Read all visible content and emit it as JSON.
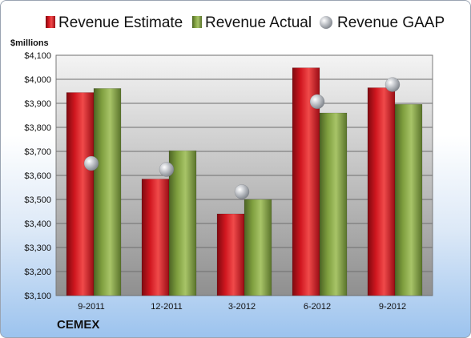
{
  "chart_data": {
    "type": "bar",
    "ylabel": "$millions",
    "ylim": [
      3100,
      4100
    ],
    "yticks": [
      3100,
      3200,
      3300,
      3400,
      3500,
      3600,
      3700,
      3800,
      3900,
      4000,
      4100
    ],
    "ytick_labels": [
      "$3,100",
      "$3,200",
      "$3,300",
      "$3,400",
      "$3,500",
      "$3,600",
      "$3,700",
      "$3,800",
      "$3,900",
      "$4,000",
      "$4,100"
    ],
    "categories": [
      "9-2011",
      "12-2011",
      "3-2012",
      "6-2012",
      "9-2012"
    ],
    "series": [
      {
        "name": "Revenue Estimate",
        "type": "bar",
        "color": "#c8131f",
        "values": [
          3945,
          3585,
          3440,
          4048,
          3965
        ]
      },
      {
        "name": "Revenue Actual",
        "type": "bar",
        "color": "#7a9a3b",
        "values": [
          3962,
          3703,
          3500,
          3860,
          3896
        ]
      },
      {
        "name": "Revenue GAAP",
        "type": "scatter",
        "color": "#a9adb3",
        "values": [
          3650,
          3625,
          3532,
          3907,
          3978
        ]
      }
    ],
    "grid": true,
    "legend": "top",
    "footer": "CEMEX"
  }
}
